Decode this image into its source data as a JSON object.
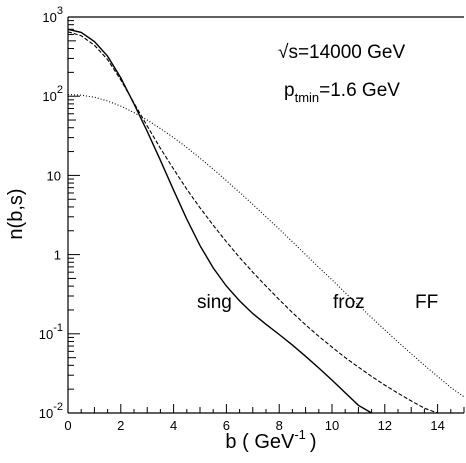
{
  "chart_data": {
    "type": "line",
    "xlabel": "b ( GeV",
    "xlabel_exp": "-1",
    "xlabel_close": ")",
    "ylabel": "n(b,s)",
    "xlim": [
      0,
      15
    ],
    "ylim": [
      0.01,
      1000
    ],
    "yscale": "log",
    "x_ticks": [
      "0",
      "2",
      "4",
      "6",
      "8",
      "10",
      "12",
      "14"
    ],
    "y_ticks": [
      {
        "value": 1000,
        "base": "10",
        "exp": "3"
      },
      {
        "value": 100,
        "base": "10",
        "exp": "2"
      },
      {
        "value": 10,
        "base": "10",
        "exp": ""
      },
      {
        "value": 1,
        "base": "1",
        "exp": ""
      },
      {
        "value": 0.1,
        "base": "10",
        "exp": "-1"
      },
      {
        "value": 0.01,
        "base": "10",
        "exp": "-2"
      }
    ],
    "grid": false,
    "annotations": {
      "energy": {
        "sqrt": "√",
        "text": "s=14000 GeV"
      },
      "ptmin": {
        "base": "p",
        "sub": "tmin",
        "text": "=1.6 GeV"
      }
    },
    "series": [
      {
        "name": "sing",
        "style": "solid",
        "x": [
          0,
          0.5,
          1,
          1.5,
          2,
          2.5,
          3,
          3.5,
          4,
          4.5,
          5,
          5.5,
          6,
          6.5,
          7,
          7.5,
          8,
          8.5,
          9,
          9.5,
          10,
          10.5,
          11,
          11.5
        ],
        "y": [
          700,
          640,
          490,
          320,
          170,
          80,
          36,
          15.5,
          6.5,
          2.8,
          1.3,
          0.68,
          0.4,
          0.26,
          0.18,
          0.132,
          0.098,
          0.072,
          0.052,
          0.037,
          0.026,
          0.018,
          0.0125,
          0.0085
        ]
      },
      {
        "name": "froz",
        "style": "dashed",
        "x": [
          0,
          0.5,
          1,
          1.5,
          2,
          2.5,
          3,
          3.5,
          4,
          4.5,
          5,
          5.5,
          6,
          6.5,
          7,
          7.5,
          8,
          8.5,
          9,
          9.5,
          10,
          10.5,
          11,
          11.5,
          12,
          12.5,
          13,
          13.5,
          14,
          14.5,
          15
        ],
        "y": [
          650,
          580,
          440,
          290,
          160,
          82,
          42,
          22,
          12,
          6.7,
          3.9,
          2.35,
          1.45,
          0.92,
          0.6,
          0.4,
          0.27,
          0.185,
          0.13,
          0.093,
          0.068,
          0.05,
          0.038,
          0.029,
          0.0225,
          0.0178,
          0.0142,
          0.0115,
          0.0093,
          0.0075,
          0.006
        ]
      },
      {
        "name": "FF",
        "style": "dotted",
        "x": [
          0,
          0.5,
          1,
          1.5,
          2,
          2.5,
          3,
          3.5,
          4,
          4.5,
          5,
          5.5,
          6,
          6.5,
          7,
          7.5,
          8,
          8.5,
          9,
          9.5,
          10,
          10.5,
          11,
          11.5,
          12,
          12.5,
          13,
          13.5,
          14,
          14.5,
          15
        ],
        "y": [
          105,
          103,
          97,
          87,
          75,
          62,
          50,
          39,
          30,
          22.5,
          16.5,
          12,
          8.6,
          6.1,
          4.3,
          3.0,
          2.1,
          1.45,
          1.0,
          0.69,
          0.48,
          0.33,
          0.23,
          0.16,
          0.112,
          0.079,
          0.056,
          0.04,
          0.029,
          0.021,
          0.016
        ]
      }
    ]
  }
}
